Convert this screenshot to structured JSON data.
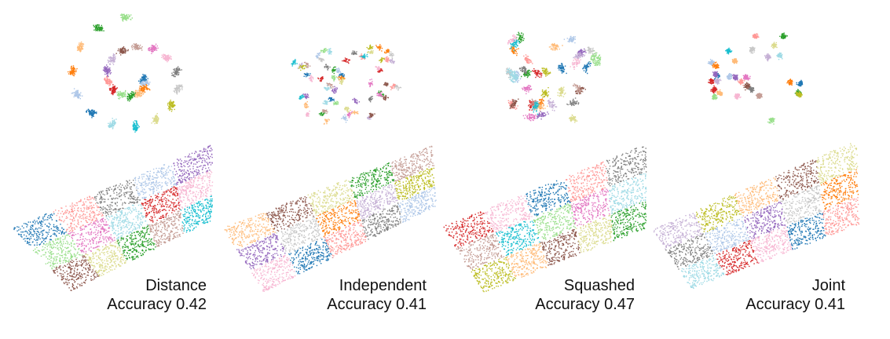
{
  "palette": [
    "#1f77b4",
    "#aec7e8",
    "#ff7f0e",
    "#ffbb78",
    "#2ca02c",
    "#98df8a",
    "#d62728",
    "#ff9896",
    "#9467bd",
    "#c5b0d5",
    "#8c564b",
    "#c49c94",
    "#e377c2",
    "#f7b6d2",
    "#7f7f7f",
    "#c7c7c7",
    "#bcbd22",
    "#dbdb8d",
    "#17becf",
    "#9edae5"
  ],
  "chart_data": [
    {
      "type": "scatter",
      "name": "Distance",
      "accuracy_label": "Accuracy 0.42",
      "accuracy": 0.42,
      "top_embedding": "spiral clusters (t-SNE)",
      "bottom_embedding": "2D parallelogram spread",
      "n_classes": 20
    },
    {
      "type": "scatter",
      "name": "Independent",
      "accuracy_label": "Accuracy 0.41",
      "accuracy": 0.41,
      "top_embedding": "many small clusters (t-SNE)",
      "bottom_embedding": "2D parallelogram spread",
      "n_classes": 20
    },
    {
      "type": "scatter",
      "name": "Squashed",
      "accuracy_label": "Accuracy 0.47",
      "accuracy": 0.47,
      "top_embedding": "clusters (t-SNE)",
      "bottom_embedding": "2D parallelogram spread",
      "n_classes": 20
    },
    {
      "type": "scatter",
      "name": "Joint",
      "accuracy_label": "Accuracy 0.41",
      "accuracy": 0.41,
      "top_embedding": "compact round clusters (t-SNE)",
      "bottom_embedding": "2D parallelogram spread",
      "n_classes": 20
    }
  ]
}
